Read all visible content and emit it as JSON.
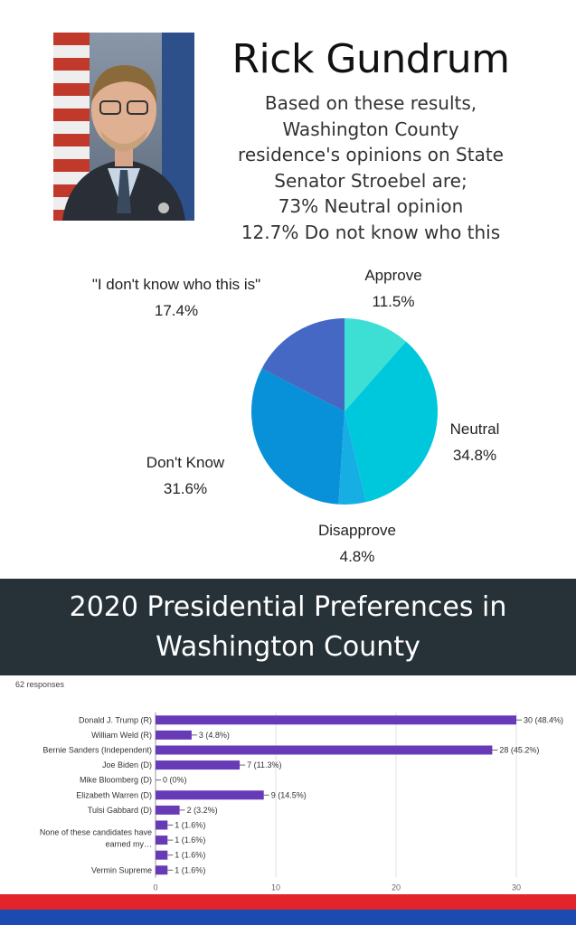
{
  "header": {
    "name": "Rick Gundrum",
    "lines": [
      "Based on these results,",
      "Washington County",
      "residence's opinions on State",
      "Senator Stroebel are;",
      "73% Neutral opinion",
      "12.7% Do not know who this"
    ]
  },
  "banner": {
    "line1": "2020 Presidential Preferences in",
    "line2": "Washington County"
  },
  "responses": "62 responses",
  "chart_data": [
    {
      "type": "pie",
      "slices": [
        {
          "label": "Approve",
          "value": 11.5,
          "display": "11.5%",
          "color": "#3ddfd5"
        },
        {
          "label": "Neutral",
          "value": 34.8,
          "display": "34.8%",
          "color": "#00c8dc"
        },
        {
          "label": "Disapprove",
          "value": 4.8,
          "display": "4.8%",
          "color": "#17aee4"
        },
        {
          "label": "Don't Know",
          "value": 31.6,
          "display": "31.6%",
          "color": "#0891d8"
        },
        {
          "label": "\"I don't know who this is\"",
          "value": 17.4,
          "display": "17.4%",
          "color": "#4468c4"
        }
      ]
    },
    {
      "type": "bar",
      "orientation": "horizontal",
      "categories": [
        "Donald J. Trump (R)",
        "William Weld (R)",
        "Bernie Sanders (Independent)",
        "Joe Biden (D)",
        "Mike Bloomberg (D)",
        "Elizabeth Warren (D)",
        "Tulsi Gabbard (D)",
        "None of these candidates have earned my…",
        "",
        "",
        "Vermin Supreme"
      ],
      "values": [
        30,
        3,
        28,
        7,
        0,
        9,
        2,
        1,
        1,
        1,
        1
      ],
      "value_labels": [
        "30 (48.4%)",
        "3 (4.8%)",
        "28 (45.2%)",
        "7 (11.3%)",
        "0 (0%)",
        "9 (14.5%)",
        "2 (3.2%)",
        "1 (1.6%)",
        "1 (1.6%)",
        "1 (1.6%)",
        "1 (1.6%)"
      ],
      "xticks": [
        0,
        10,
        20,
        30
      ],
      "xlim": [
        0,
        30
      ],
      "bar_color": "#673ab7",
      "grid": true
    }
  ]
}
